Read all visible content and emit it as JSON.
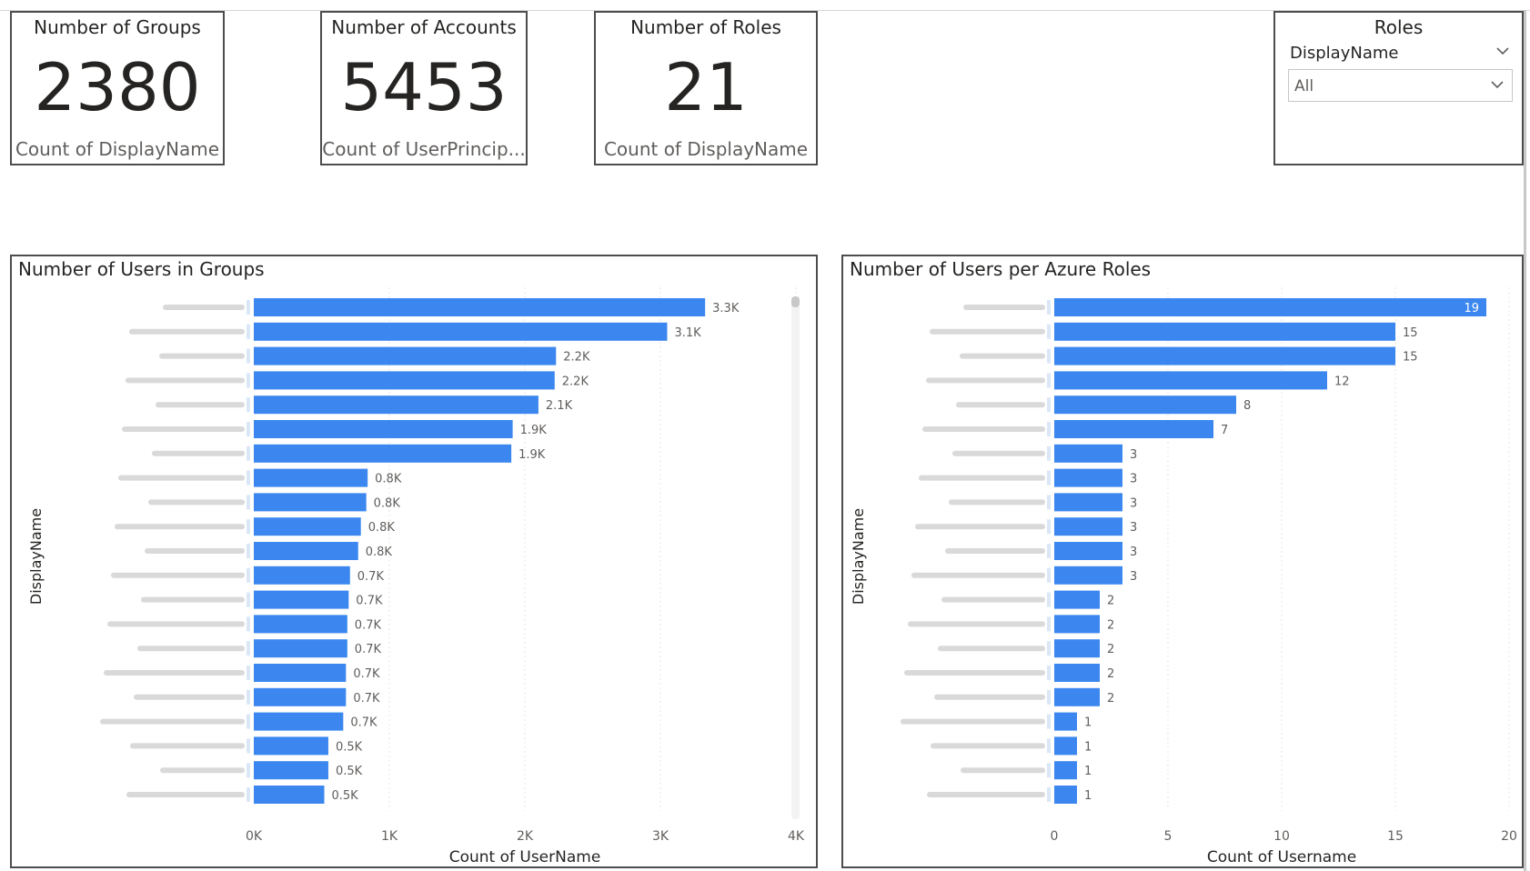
{
  "cards": [
    {
      "title": "Number of Groups",
      "value": "2380",
      "subtitle": "Count of DisplayName"
    },
    {
      "title": "Number of Accounts",
      "value": "5453",
      "subtitle": "Count of UserPrincip..."
    },
    {
      "title": "Number of Roles",
      "value": "21",
      "subtitle": "Count of DisplayName"
    }
  ],
  "slicer": {
    "title": "Roles",
    "field": "DisplayName",
    "selected": "All",
    "icons": [
      "chevron-down-icon",
      "chevron-down-icon"
    ]
  },
  "colors": {
    "bar": "#3b87ef",
    "axis_text": "#605e5c",
    "panel_border": "#4d4d4d"
  },
  "chart_data": [
    {
      "type": "bar",
      "orientation": "horizontal",
      "title": "Number of Users in Groups",
      "xlabel": "Count of UserName",
      "ylabel": "DisplayName",
      "xlim": [
        0,
        4000
      ],
      "xticks": [
        "0K",
        "1K",
        "2K",
        "3K",
        "4K"
      ],
      "values": [
        3330,
        3050,
        2230,
        2220,
        2100,
        1910,
        1900,
        840,
        830,
        790,
        770,
        710,
        700,
        690,
        690,
        680,
        680,
        660,
        550,
        550,
        520
      ],
      "data_labels": [
        "3.3K",
        "3.1K",
        "2.2K",
        "2.2K",
        "2.1K",
        "1.9K",
        "1.9K",
        "0.8K",
        "0.8K",
        "0.8K",
        "0.8K",
        "0.7K",
        "0.7K",
        "0.7K",
        "0.7K",
        "0.7K",
        "0.7K",
        "0.7K",
        "0.5K",
        "0.5K",
        "0.5K"
      ],
      "grid": true
    },
    {
      "type": "bar",
      "orientation": "horizontal",
      "title": "Number of Users per Azure Roles",
      "xlabel": "Count of Username",
      "ylabel": "DisplayName",
      "xlim": [
        0,
        20
      ],
      "xticks": [
        "0",
        "5",
        "10",
        "15",
        "20"
      ],
      "values": [
        19,
        15,
        15,
        12,
        8,
        7,
        3,
        3,
        3,
        3,
        3,
        3,
        2,
        2,
        2,
        2,
        2,
        1,
        1,
        1,
        1
      ],
      "data_labels": [
        "19",
        "15",
        "15",
        "12",
        "8",
        "7",
        "3",
        "3",
        "3",
        "3",
        "3",
        "3",
        "2",
        "2",
        "2",
        "2",
        "2",
        "1",
        "1",
        "1",
        "1"
      ],
      "grid": true
    }
  ]
}
